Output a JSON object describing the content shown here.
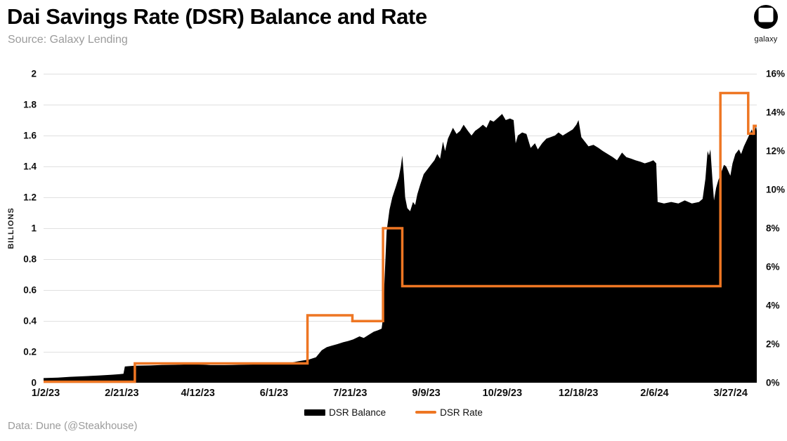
{
  "header": {
    "title": "Dai Savings Rate (DSR) Balance and Rate",
    "source": "Source: Galaxy Lending",
    "logo_text": "galaxy"
  },
  "footer": {
    "credit": "Data: Dune (@Steakhouse)"
  },
  "legend": {
    "items": [
      {
        "label": "DSR Balance",
        "type": "area",
        "color": "#000000"
      },
      {
        "label": "DSR Rate",
        "type": "line",
        "color": "#EE7623"
      }
    ]
  },
  "colors": {
    "balance": "#000000",
    "rate": "#EE7623",
    "grid": "#E0E0E0",
    "muted_text": "#9B9B9B"
  },
  "chart_data": {
    "type": "area+line",
    "title": "Dai Savings Rate (DSR) Balance and Rate",
    "grid": "horizontal-only",
    "left_axis": {
      "label": "BILLIONS",
      "min": 0,
      "max": 2,
      "ticks": [
        "2",
        "1.8",
        "1.6",
        "1.4",
        "1.2",
        "1",
        "0.8",
        "0.6",
        "0.4",
        "0.2",
        "0"
      ]
    },
    "right_axis": {
      "label": "",
      "min": 0,
      "max": 16,
      "ticks": [
        "16%",
        "14%",
        "12%",
        "10%",
        "8%",
        "6%",
        "4%",
        "2%",
        "0%"
      ]
    },
    "x_ticks": [
      "1/2/23",
      "2/21/23",
      "4/12/23",
      "6/1/23",
      "7/21/23",
      "9/9/23",
      "10/29/23",
      "12/18/23",
      "2/6/24",
      "3/27/24"
    ],
    "x_tick_first_fraction": 0.003,
    "x_tick_step_fraction": 0.1067,
    "series": [
      {
        "name": "DSR Balance",
        "type": "area",
        "axis": "left",
        "unit": "billions DAI",
        "color": "#000000",
        "points": [
          [
            0.0,
            0.03
          ],
          [
            0.02,
            0.033
          ],
          [
            0.037,
            0.038
          ],
          [
            0.057,
            0.042
          ],
          [
            0.077,
            0.047
          ],
          [
            0.096,
            0.052
          ],
          [
            0.106,
            0.055
          ],
          [
            0.112,
            0.058
          ],
          [
            0.114,
            0.105
          ],
          [
            0.128,
            0.11
          ],
          [
            0.15,
            0.112
          ],
          [
            0.166,
            0.115
          ],
          [
            0.185,
            0.116
          ],
          [
            0.205,
            0.12
          ],
          [
            0.224,
            0.117
          ],
          [
            0.234,
            0.114
          ],
          [
            0.254,
            0.114
          ],
          [
            0.264,
            0.115
          ],
          [
            0.284,
            0.117
          ],
          [
            0.294,
            0.118
          ],
          [
            0.313,
            0.12
          ],
          [
            0.323,
            0.121
          ],
          [
            0.333,
            0.122
          ],
          [
            0.343,
            0.126
          ],
          [
            0.358,
            0.14
          ],
          [
            0.372,
            0.15
          ],
          [
            0.382,
            0.165
          ],
          [
            0.39,
            0.21
          ],
          [
            0.397,
            0.23
          ],
          [
            0.404,
            0.24
          ],
          [
            0.412,
            0.25
          ],
          [
            0.42,
            0.262
          ],
          [
            0.427,
            0.27
          ],
          [
            0.434,
            0.28
          ],
          [
            0.443,
            0.3
          ],
          [
            0.449,
            0.29
          ],
          [
            0.456,
            0.31
          ],
          [
            0.463,
            0.33
          ],
          [
            0.469,
            0.34
          ],
          [
            0.474,
            0.35
          ],
          [
            0.476,
            0.42
          ],
          [
            0.478,
            0.66
          ],
          [
            0.481,
            0.98
          ],
          [
            0.485,
            1.12
          ],
          [
            0.489,
            1.2
          ],
          [
            0.494,
            1.27
          ],
          [
            0.498,
            1.33
          ],
          [
            0.501,
            1.4
          ],
          [
            0.503,
            1.47
          ],
          [
            0.505,
            1.35
          ],
          [
            0.507,
            1.2
          ],
          [
            0.51,
            1.13
          ],
          [
            0.514,
            1.11
          ],
          [
            0.518,
            1.17
          ],
          [
            0.521,
            1.15
          ],
          [
            0.524,
            1.22
          ],
          [
            0.528,
            1.28
          ],
          [
            0.533,
            1.35
          ],
          [
            0.538,
            1.38
          ],
          [
            0.543,
            1.41
          ],
          [
            0.548,
            1.44
          ],
          [
            0.552,
            1.48
          ],
          [
            0.556,
            1.45
          ],
          [
            0.56,
            1.56
          ],
          [
            0.563,
            1.5
          ],
          [
            0.567,
            1.58
          ],
          [
            0.574,
            1.65
          ],
          [
            0.579,
            1.61
          ],
          [
            0.584,
            1.63
          ],
          [
            0.589,
            1.67
          ],
          [
            0.595,
            1.63
          ],
          [
            0.6,
            1.6
          ],
          [
            0.605,
            1.63
          ],
          [
            0.611,
            1.65
          ],
          [
            0.616,
            1.67
          ],
          [
            0.621,
            1.65
          ],
          [
            0.626,
            1.7
          ],
          [
            0.631,
            1.69
          ],
          [
            0.636,
            1.71
          ],
          [
            0.643,
            1.74
          ],
          [
            0.648,
            1.7
          ],
          [
            0.654,
            1.71
          ],
          [
            0.659,
            1.7
          ],
          [
            0.662,
            1.55
          ],
          [
            0.665,
            1.6
          ],
          [
            0.671,
            1.62
          ],
          [
            0.677,
            1.61
          ],
          [
            0.683,
            1.52
          ],
          [
            0.689,
            1.55
          ],
          [
            0.693,
            1.51
          ],
          [
            0.699,
            1.55
          ],
          [
            0.705,
            1.58
          ],
          [
            0.711,
            1.59
          ],
          [
            0.717,
            1.6
          ],
          [
            0.722,
            1.62
          ],
          [
            0.728,
            1.6
          ],
          [
            0.735,
            1.62
          ],
          [
            0.742,
            1.64
          ],
          [
            0.747,
            1.67
          ],
          [
            0.75,
            1.7
          ],
          [
            0.754,
            1.59
          ],
          [
            0.759,
            1.56
          ],
          [
            0.764,
            1.53
          ],
          [
            0.771,
            1.54
          ],
          [
            0.778,
            1.52
          ],
          [
            0.784,
            1.5
          ],
          [
            0.791,
            1.48
          ],
          [
            0.798,
            1.46
          ],
          [
            0.804,
            1.44
          ],
          [
            0.811,
            1.49
          ],
          [
            0.817,
            1.46
          ],
          [
            0.824,
            1.45
          ],
          [
            0.83,
            1.44
          ],
          [
            0.837,
            1.43
          ],
          [
            0.843,
            1.42
          ],
          [
            0.85,
            1.43
          ],
          [
            0.855,
            1.44
          ],
          [
            0.859,
            1.42
          ],
          [
            0.861,
            1.17
          ],
          [
            0.87,
            1.16
          ],
          [
            0.88,
            1.17
          ],
          [
            0.89,
            1.16
          ],
          [
            0.899,
            1.18
          ],
          [
            0.909,
            1.16
          ],
          [
            0.919,
            1.17
          ],
          [
            0.924,
            1.19
          ],
          [
            0.928,
            1.32
          ],
          [
            0.931,
            1.5
          ],
          [
            0.933,
            1.47
          ],
          [
            0.935,
            1.51
          ],
          [
            0.938,
            1.3
          ],
          [
            0.94,
            1.18
          ],
          [
            0.943,
            1.26
          ],
          [
            0.946,
            1.31
          ],
          [
            0.95,
            1.36
          ],
          [
            0.954,
            1.41
          ],
          [
            0.957,
            1.4
          ],
          [
            0.96,
            1.37
          ],
          [
            0.963,
            1.34
          ],
          [
            0.966,
            1.42
          ],
          [
            0.97,
            1.48
          ],
          [
            0.975,
            1.51
          ],
          [
            0.978,
            1.48
          ],
          [
            0.982,
            1.53
          ],
          [
            0.986,
            1.57
          ],
          [
            0.99,
            1.61
          ],
          [
            0.993,
            1.64
          ],
          [
            0.995,
            1.6
          ],
          [
            0.999,
            1.66
          ],
          [
            1.0,
            1.63
          ]
        ]
      },
      {
        "name": "DSR Rate",
        "type": "step-line",
        "axis": "right",
        "unit": "%",
        "color": "#EE7623",
        "points": [
          [
            0.0,
            0.05
          ],
          [
            0.128,
            0.05
          ],
          [
            0.128,
            1.0
          ],
          [
            0.37,
            1.0
          ],
          [
            0.37,
            3.49
          ],
          [
            0.433,
            3.49
          ],
          [
            0.433,
            3.19
          ],
          [
            0.476,
            3.19
          ],
          [
            0.476,
            8.0
          ],
          [
            0.503,
            8.0
          ],
          [
            0.503,
            5.0
          ],
          [
            0.949,
            5.0
          ],
          [
            0.949,
            15.0
          ],
          [
            0.988,
            15.0
          ],
          [
            0.988,
            12.9
          ],
          [
            0.996,
            12.9
          ],
          [
            0.996,
            13.3
          ],
          [
            1.0,
            13.3
          ]
        ]
      }
    ]
  }
}
